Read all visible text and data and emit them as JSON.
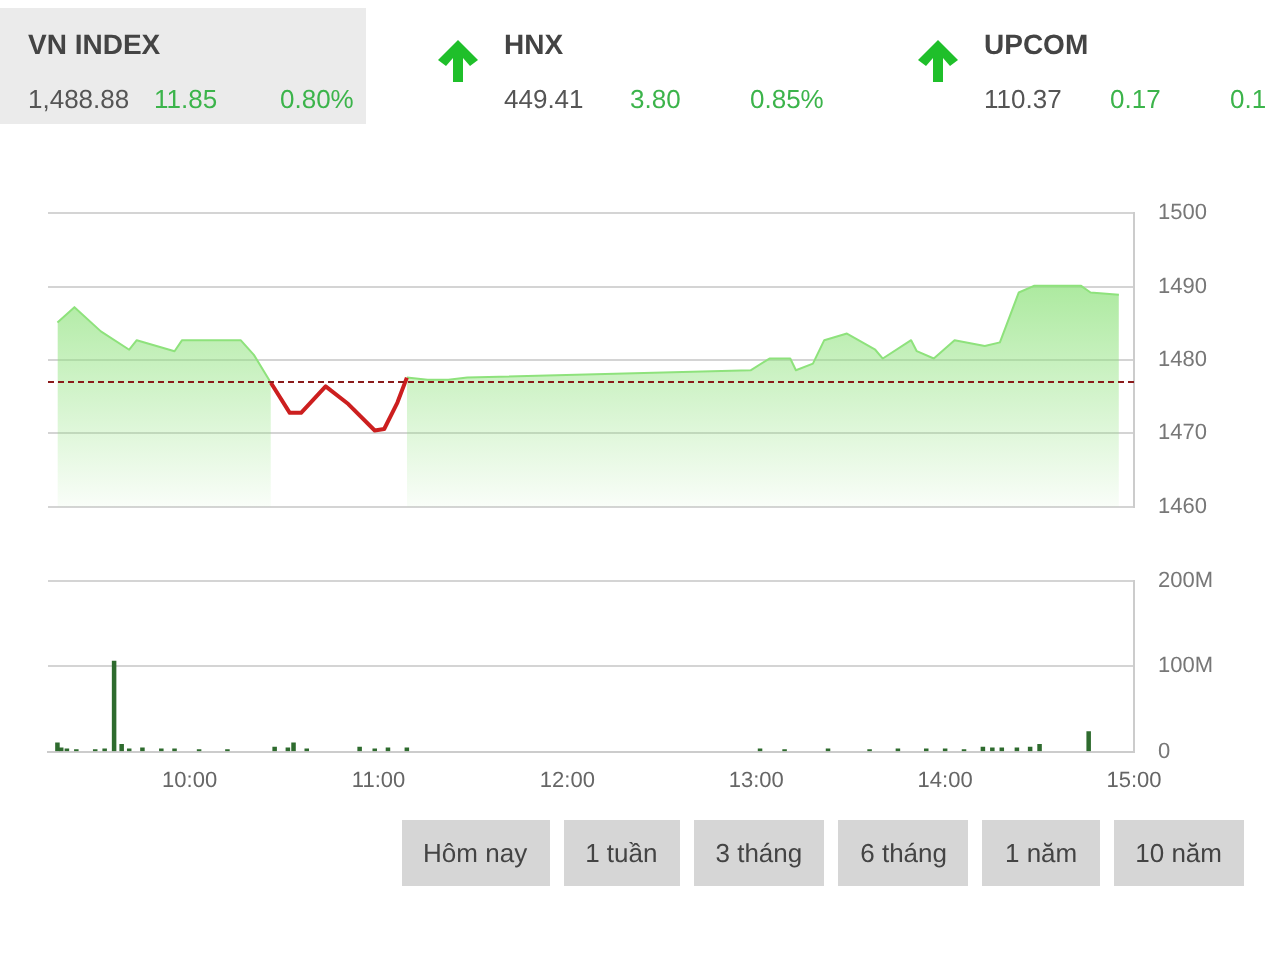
{
  "chart_data": [
    {
      "type": "other",
      "annotations": [
        "VN INDEX",
        "1,488.88",
        "11.85",
        "0.80%",
        "HNX",
        "449.41",
        "3.80",
        "0.85%",
        "UPCOM",
        "110.37",
        "0.17",
        "0.1"
      ]
    },
    {
      "type": "area",
      "ylim": [
        1460,
        1500
      ],
      "yticks": [
        1460,
        1470,
        1480,
        1490,
        1500
      ],
      "xlim": [
        9.25,
        15
      ],
      "tick_labels": "y",
      "grid": "y",
      "legend": false,
      "ref_lines": [
        {
          "axis": "y",
          "value": 1477,
          "color": "#8b1a1a",
          "line_style": "dashed"
        }
      ],
      "series": [
        {
          "type": "area",
          "color": "#8ee27c",
          "x": [
            9.3,
            9.39,
            9.53,
            9.68,
            9.72,
            9.92,
            9.96,
            10.27,
            10.34,
            10.43,
            10.53,
            10.59,
            10.72,
            10.84,
            10.98,
            11.03,
            11.1,
            11.15,
            11.26,
            11.37,
            11.47,
            12.97,
            13.07,
            13.18,
            13.21,
            13.3,
            13.36,
            13.48,
            13.63,
            13.67,
            13.82,
            13.85,
            13.94,
            14.05,
            14.21,
            14.29,
            14.39,
            14.47,
            14.72,
            14.77,
            14.92
          ],
          "values": [
            1485.1,
            1487.2,
            1483.9,
            1481.4,
            1482.7,
            1481.2,
            1482.7,
            1482.7,
            1480.7,
            1476.9,
            null,
            null,
            null,
            null,
            null,
            null,
            null,
            1477.6,
            1477.3,
            1477.3,
            1477.6,
            1478.6,
            1480.2,
            1480.2,
            1478.6,
            1479.5,
            1482.7,
            1483.6,
            1481.4,
            1480.2,
            1482.7,
            1481.2,
            1480.2,
            1482.7,
            1481.9,
            1482.4,
            1489.2,
            1490.1,
            1490.1,
            1489.2,
            1488.9
          ]
        },
        {
          "type": "line",
          "color": "#cc1f1f",
          "x": [
            10.43,
            10.53,
            10.59,
            10.72,
            10.84,
            10.98,
            11.03,
            11.1,
            11.15
          ],
          "values": [
            1476.9,
            1472.8,
            1472.8,
            1476.4,
            1474,
            1470.4,
            1470.6,
            1474.2,
            1477.6
          ]
        }
      ]
    },
    {
      "type": "bar",
      "ylim": [
        0,
        200
      ],
      "yticks": [
        0,
        {
          "value": 100,
          "label": "100M"
        },
        {
          "value": 200,
          "label": "200M"
        }
      ],
      "xlim": [
        9.25,
        15
      ],
      "xticks": [
        {
          "value": 10,
          "label": "10:00"
        },
        {
          "value": 11,
          "label": "11:00"
        },
        {
          "value": 12,
          "label": "12:00"
        },
        {
          "value": 13,
          "label": "13:00"
        },
        {
          "value": 14,
          "label": "14:00"
        },
        {
          "value": 15,
          "label": "15:00"
        }
      ],
      "grid": "y",
      "legend": false,
      "series": [
        {
          "color": "#2e6b2e",
          "x": [
            9.3,
            9.32,
            9.35,
            9.4,
            9.5,
            9.55,
            9.6,
            9.64,
            9.68,
            9.75,
            9.85,
            9.92,
            10.05,
            10.2,
            10.45,
            10.52,
            10.55,
            10.62,
            10.9,
            10.98,
            11.05,
            11.15,
            13.02,
            13.15,
            13.38,
            13.6,
            13.75,
            13.9,
            14.0,
            14.1,
            14.2,
            14.25,
            14.3,
            14.38,
            14.45,
            14.5,
            14.76
          ],
          "values": [
            10,
            4,
            3,
            2,
            2,
            3,
            106,
            8,
            3,
            4,
            3,
            3,
            2,
            2,
            5,
            4,
            10,
            3,
            5,
            3,
            4,
            4,
            3,
            2,
            3,
            2,
            3,
            3,
            3,
            2,
            5,
            4,
            4,
            4,
            5,
            8,
            23
          ]
        }
      ]
    },
    {
      "type": "other",
      "annotations": [
        "Hôm nay",
        "1 tuần",
        "3 tháng",
        "6 tháng",
        "1 năm",
        "10 năm"
      ]
    }
  ]
}
